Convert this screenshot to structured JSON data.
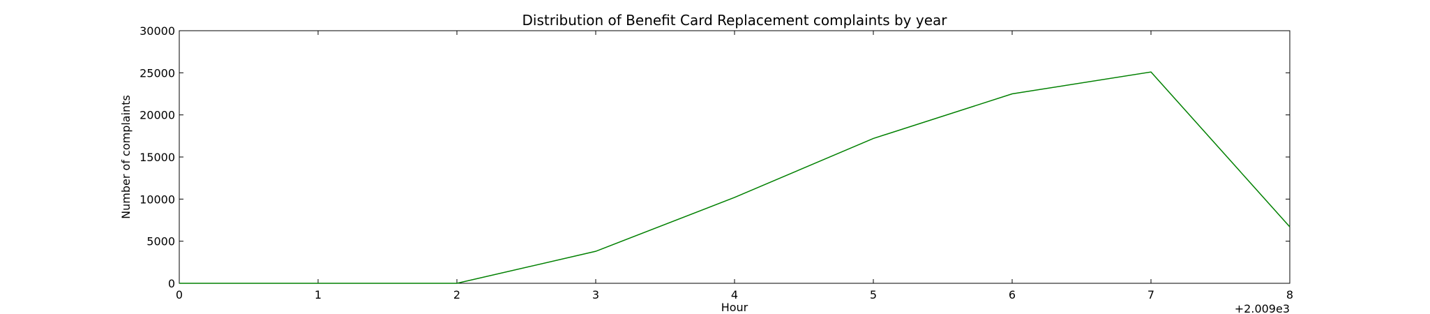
{
  "chart_data": {
    "type": "line",
    "title": "Distribution of  Benefit Card Replacement complaints by year",
    "xlabel": "Hour",
    "ylabel": "Number of complaints",
    "x_offset_label": "+2.009e3",
    "xlim": [
      0,
      8
    ],
    "ylim": [
      0,
      30000
    ],
    "x_ticks": [
      0,
      1,
      2,
      3,
      4,
      5,
      6,
      7,
      8
    ],
    "y_ticks": [
      0,
      5000,
      10000,
      15000,
      20000,
      25000,
      30000
    ],
    "grid": false,
    "series": [
      {
        "color": "#008000",
        "x": [
          0,
          1,
          2,
          3,
          4,
          5,
          6,
          7,
          8
        ],
        "y": [
          0,
          0,
          0,
          3800,
          10200,
          17200,
          22500,
          25100,
          6700
        ]
      }
    ]
  }
}
